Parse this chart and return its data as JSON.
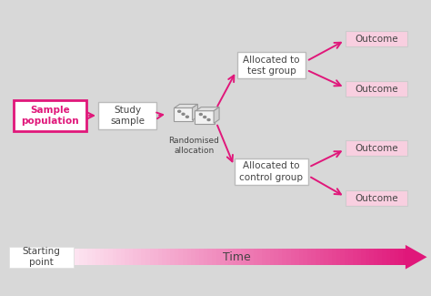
{
  "bg_color": "#d8d8d8",
  "arrow_color": "#e0177a",
  "box_fill_white": "#ffffff",
  "box_fill_pink": "#f8cfe0",
  "text_color_dark": "#444444",
  "text_color_pink": "#e0177a",
  "sample_pop_text": "Sample\npopulation",
  "study_sample_text": "Study\nsample",
  "randomised_text": "Randomised\nallocation",
  "test_group_text": "Allocated to\ntest group",
  "control_group_text": "Allocated to\ncontrol group",
  "outcome_text": "Outcome",
  "starting_point_text": "Starting\npoint",
  "time_text": "Time",
  "figsize": [
    4.74,
    3.25
  ],
  "dpi": 100
}
